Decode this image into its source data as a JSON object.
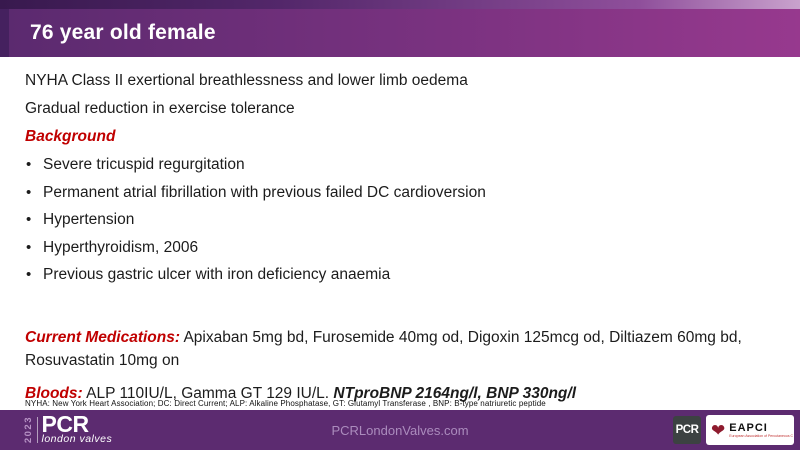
{
  "slide": {
    "title": "76 year old female",
    "intro_lines": [
      "NYHA Class II exertional breathlessness and lower limb oedema",
      "Gradual reduction in exercise tolerance"
    ],
    "background": {
      "heading": "Background",
      "bullets": [
        "Severe tricuspid regurgitation",
        "Permanent atrial fibrillation with previous failed DC cardioversion",
        "Hypertension",
        "Hyperthyroidism, 2006",
        "Previous gastric ulcer with iron deficiency anaemia"
      ]
    },
    "medications": {
      "label": "Current Medications:",
      "text": " Apixaban 5mg bd, Furosemide 40mg od, Digoxin 125mcg od, Diltiazem 60mg bd, Rosuvastatin 10mg on"
    },
    "bloods": {
      "label": "Bloods:",
      "text": " ALP 110IU/L, Gamma GT 129 IU/L. ",
      "highlight": "NTproBNP 2164ng/l, BNP 330ng/l"
    },
    "footnote": "NYHA: New York Heart Association; DC: Direct Current; ALP: Alkaline Phosphatase, GT: Glutamyl Transferase , BNP: B-type natriuretic peptide"
  },
  "footer": {
    "year": "2023",
    "logo_main": "PCR",
    "logo_sub": "london valves",
    "website": "PCRLondonValves.com",
    "pcr_badge": "PCR",
    "eapci_name": "EAPCI",
    "eapci_tagline": "European Association of Percutaneous Cardiovascular Interventions"
  },
  "colors": {
    "accent_red": "#c00000",
    "header_gradient_start": "#5b2a6f",
    "header_gradient_end": "#97398e",
    "band_dark": "#45215f",
    "footer_purple": "#5c2b70",
    "footer_text_lavender": "#ab8cbd",
    "heart_red": "#8e1b2e",
    "body_text": "#1c1c1c"
  }
}
